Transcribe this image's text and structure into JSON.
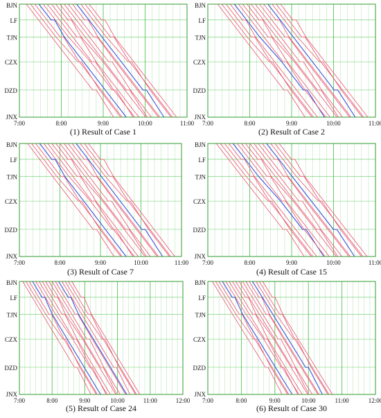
{
  "figure": {
    "stations": [
      "BJN",
      "LF",
      "TJN",
      "CZX",
      "DZD",
      "JNX"
    ],
    "colors": {
      "grid": "#3fbf3f",
      "red_trains": "#e8506e",
      "blue_trains": "#3a4fd8",
      "frame": "#2e9e2e"
    }
  },
  "chart_data": [
    {
      "type": "line",
      "caption": "(1) Result of Case 1",
      "y_labels": [
        "BJN",
        "LF",
        "TJN",
        "CZX",
        "DZD",
        "JNX"
      ],
      "x_tick_labels": [
        "7:00",
        "8:00",
        "9:00",
        "10:00",
        "11:00"
      ],
      "xlim": [
        "7:00",
        "11:00"
      ],
      "grid": true,
      "train_departures_BJN": [
        "7:10",
        "7:16",
        "7:22",
        "7:28",
        "7:34",
        "7:40",
        "7:46",
        "7:52",
        "7:58",
        "8:04",
        "8:10",
        "8:16",
        "8:22",
        "8:28",
        "8:34",
        "8:40"
      ],
      "blue_train_indices": [
        3,
        12
      ],
      "travel_time_minutes": 125
    },
    {
      "type": "line",
      "caption": "(2) Result of Case 2",
      "y_labels": [
        "BJN",
        "LF",
        "TJN",
        "CZX",
        "DZD",
        "JNX"
      ],
      "x_tick_labels": [
        "7:00",
        "8:00",
        "9:00",
        "10:00",
        "11:00"
      ],
      "xlim": [
        "7:00",
        "11:00"
      ],
      "grid": true,
      "train_departures_BJN": [
        "7:14",
        "7:20",
        "7:26",
        "7:32",
        "7:38",
        "7:44",
        "7:50",
        "7:56",
        "8:02",
        "8:08",
        "8:14",
        "8:20",
        "8:26",
        "8:32",
        "8:38",
        "8:44"
      ],
      "blue_train_indices": [
        4,
        12
      ],
      "travel_time_minutes": 125
    },
    {
      "type": "line",
      "caption": "(3) Result of Case 7",
      "y_labels": [
        "BJN",
        "LF",
        "TJN",
        "CZX",
        "DZD",
        "JNX"
      ],
      "x_tick_labels": [
        "7:00",
        "8:00",
        "9:00",
        "10:00",
        "11:00"
      ],
      "xlim": [
        "7:00",
        "11:00"
      ],
      "grid": true,
      "train_departures_BJN": [
        "7:12",
        "7:18",
        "7:24",
        "7:30",
        "7:36",
        "7:42",
        "7:48",
        "7:54",
        "8:00",
        "8:06",
        "8:12",
        "8:18",
        "8:24",
        "8:30",
        "8:36",
        "8:42"
      ],
      "blue_train_indices": [
        3,
        12
      ],
      "travel_time_minutes": 128
    },
    {
      "type": "line",
      "caption": "(4) Result of Case 15",
      "y_labels": [
        "BJN",
        "LF",
        "TJN",
        "CZX",
        "DZD",
        "JNX"
      ],
      "x_tick_labels": [
        "7:00",
        "8:00",
        "9:00",
        "10:00",
        "11:00"
      ],
      "xlim": [
        "7:00",
        "11:00"
      ],
      "grid": true,
      "train_departures_BJN": [
        "7:12",
        "7:18",
        "7:24",
        "7:30",
        "7:36",
        "7:42",
        "7:48",
        "7:54",
        "8:00",
        "8:06",
        "8:12",
        "8:18",
        "8:24",
        "8:30",
        "8:36",
        "8:42"
      ],
      "blue_train_indices": [
        4,
        12
      ],
      "travel_time_minutes": 126
    },
    {
      "type": "line",
      "caption": "(5) Result of Case 24",
      "y_labels": [
        "BJN",
        "LF",
        "TJN",
        "CZX",
        "DZD",
        "JNX"
      ],
      "x_tick_labels": [
        "7:00",
        "8:00",
        "9:00",
        "10:00",
        "11:00",
        "12:00"
      ],
      "xlim": [
        "7:00",
        "12:00"
      ],
      "grid": true,
      "train_departures_BJN": [
        "7:06",
        "7:12",
        "7:18",
        "7:24",
        "7:30",
        "7:36",
        "7:42",
        "7:48",
        "7:54",
        "8:00",
        "8:06",
        "8:12",
        "8:18",
        "8:24",
        "8:30",
        "8:36"
      ],
      "blue_train_indices": [
        3,
        11
      ],
      "travel_time_minutes": 125
    },
    {
      "type": "line",
      "caption": "(6) Result of Case 30",
      "y_labels": [
        "BJN",
        "LF",
        "TJN",
        "CZX",
        "DZD",
        "JNX"
      ],
      "x_tick_labels": [
        "7:00",
        "8:00",
        "9:00",
        "10:00",
        "11:00",
        "12:00"
      ],
      "xlim": [
        "7:00",
        "12:00"
      ],
      "grid": true,
      "train_departures_BJN": [
        "7:08",
        "7:14",
        "7:20",
        "7:26",
        "7:32",
        "7:38",
        "7:44",
        "7:50",
        "7:56",
        "8:02",
        "8:08",
        "8:14",
        "8:20",
        "8:26",
        "8:32",
        "8:38"
      ],
      "blue_train_indices": [
        3,
        12
      ],
      "travel_time_minutes": 125
    }
  ]
}
